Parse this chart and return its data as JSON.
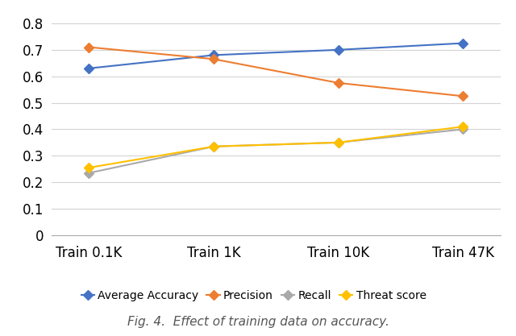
{
  "x_labels": [
    "Train 0.1K",
    "Train 1K",
    "Train 10K",
    "Train 47K"
  ],
  "series": {
    "Average Accuracy": {
      "values": [
        0.63,
        0.68,
        0.7,
        0.725
      ],
      "color": "#4472C4",
      "marker": "D"
    },
    "Precision": {
      "values": [
        0.71,
        0.665,
        0.575,
        0.525
      ],
      "color": "#ED7D31",
      "marker": "D"
    },
    "Recall": {
      "values": [
        0.235,
        0.335,
        0.35,
        0.4
      ],
      "color": "#A9A9A9",
      "marker": "D"
    },
    "Threat score": {
      "values": [
        0.255,
        0.335,
        0.35,
        0.41
      ],
      "color": "#FFC000",
      "marker": "D"
    }
  },
  "ylim": [
    0,
    0.85
  ],
  "yticks": [
    0,
    0.1,
    0.2,
    0.3,
    0.4,
    0.5,
    0.6,
    0.7,
    0.8
  ],
  "legend_order": [
    "Average Accuracy",
    "Precision",
    "Recall",
    "Threat score"
  ],
  "caption": "Fig. 4.  Effect of training data on accuracy.",
  "background_color": "#FFFFFF",
  "grid_color": "#D3D3D3",
  "line_width": 1.5,
  "marker_size": 6,
  "tick_fontsize": 12,
  "legend_fontsize": 10,
  "caption_fontsize": 11
}
